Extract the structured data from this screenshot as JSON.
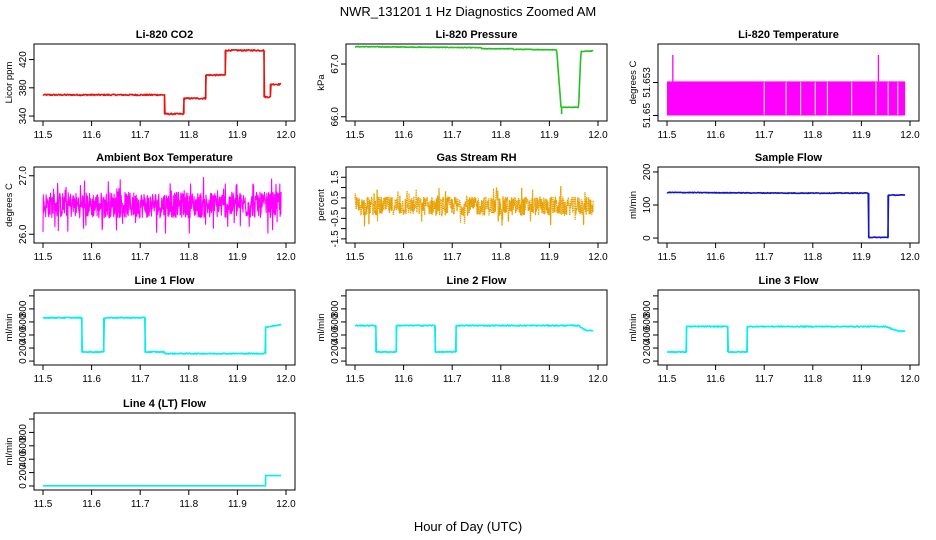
{
  "figure": {
    "title": "NWR_131201  1 Hz Diagnostics Zoomed AM",
    "xlabel": "Hour of Day (UTC)"
  },
  "chart_data": [
    {
      "type": "line",
      "title": "Li-820 CO2",
      "ylabel": "Licor ppm",
      "color": "#e8120f",
      "xlim": [
        11.5,
        12.0
      ],
      "ylim": [
        333,
        442
      ],
      "xticks": [
        11.5,
        11.6,
        11.7,
        11.8,
        11.9,
        12.0
      ],
      "yticks": [
        340,
        380,
        420
      ],
      "tick_labels_y": [
        "340",
        "380",
        "420"
      ],
      "noise": 1.0,
      "series": [
        {
          "x": [
            11.5,
            11.75,
            11.75,
            11.79,
            11.79,
            11.835,
            11.835,
            11.875,
            11.875,
            11.955,
            11.955,
            11.968,
            11.968,
            11.99
          ],
          "y": [
            370,
            370,
            343,
            343,
            365,
            365,
            398,
            398,
            433,
            433,
            367,
            367,
            385,
            385
          ]
        }
      ]
    },
    {
      "type": "line",
      "title": "Li-820 Pressure",
      "ylabel": "kPa",
      "color": "#22c31f",
      "xlim": [
        11.5,
        12.0
      ],
      "ylim": [
        65.92,
        67.38
      ],
      "xticks": [
        11.5,
        11.6,
        11.7,
        11.8,
        11.9,
        12.0
      ],
      "yticks": [
        66.0,
        67.0
      ],
      "tick_labels_y": [
        "66.0",
        "67.0"
      ],
      "noise": 0.006,
      "series": [
        {
          "x": [
            11.5,
            11.76,
            11.76,
            11.825,
            11.825,
            11.915,
            11.925,
            11.925,
            11.96,
            11.965,
            11.99
          ],
          "y": [
            67.33,
            67.31,
            67.29,
            67.29,
            67.28,
            67.27,
            66.05,
            66.18,
            66.18,
            67.24,
            67.25
          ]
        }
      ]
    },
    {
      "type": "line",
      "title": "Li-820 Temperature",
      "ylabel": "degrees C",
      "color": "#ff00ff",
      "xlim": [
        11.5,
        12.0
      ],
      "ylim": [
        51.6495,
        51.6565
      ],
      "xticks": [
        11.5,
        11.6,
        11.7,
        11.8,
        11.9,
        12.0
      ],
      "yticks": [
        51.65,
        51.653
      ],
      "tick_labels_y": [
        "51.65",
        "51.653"
      ],
      "band": [
        51.65,
        51.6531
      ],
      "spikes": [
        11.512,
        11.935
      ],
      "spike_top": 51.6555,
      "gaps": [
        11.7,
        11.745,
        11.775,
        11.805,
        11.83,
        11.88,
        11.93,
        11.955,
        11.975
      ],
      "series": []
    },
    {
      "type": "line",
      "title": "Ambient Box Temperature",
      "ylabel": "degrees C",
      "color": "#ff00ff",
      "xlim": [
        11.5,
        12.0
      ],
      "ylim": [
        25.85,
        27.15
      ],
      "xticks": [
        11.5,
        11.6,
        11.7,
        11.8,
        11.9,
        12.0
      ],
      "yticks": [
        26.0,
        27.0
      ],
      "tick_labels_y": [
        "26.0",
        "27.0"
      ],
      "noise": 0.22,
      "spiky": true,
      "series": [
        {
          "x": [
            11.5,
            11.99
          ],
          "y": [
            26.5,
            26.5
          ]
        }
      ]
    },
    {
      "type": "line",
      "title": "Gas Stream RH",
      "ylabel": "percent",
      "color": "#e8a000",
      "xlim": [
        11.5,
        12.0
      ],
      "ylim": [
        -1.7,
        2.0
      ],
      "xticks": [
        11.5,
        11.6,
        11.7,
        11.8,
        11.9,
        12.0
      ],
      "yticks": [
        -1.5,
        -0.5,
        0.5,
        1.5
      ],
      "tick_labels_y": [
        "-1.5",
        "-0.5",
        "0.5",
        "1.5"
      ],
      "minor_yticks": [
        -1.0,
        0.0,
        1.0
      ],
      "noise": 0.45,
      "spiky": true,
      "dotted": true,
      "series": [
        {
          "x": [
            11.5,
            11.99
          ],
          "y": [
            0.1,
            0.1
          ]
        }
      ]
    },
    {
      "type": "line",
      "title": "Sample Flow",
      "ylabel": "ml/min",
      "color": "#1414c8",
      "xlim": [
        11.5,
        12.0
      ],
      "ylim": [
        -15,
        215
      ],
      "xticks": [
        11.5,
        11.6,
        11.7,
        11.8,
        11.9,
        12.0
      ],
      "yticks": [
        0,
        100,
        200
      ],
      "tick_labels_y": [
        "0",
        "100",
        "200"
      ],
      "noise": 1.0,
      "series": [
        {
          "x": [
            11.5,
            11.75,
            11.91,
            11.915,
            11.915,
            11.955,
            11.955,
            11.99
          ],
          "y": [
            138,
            136,
            136,
            136,
            2,
            2,
            130,
            130
          ]
        }
      ]
    },
    {
      "type": "line",
      "title": "Line 1 Flow",
      "ylabel": "ml/min",
      "color": "#00f0f0",
      "xlim": [
        11.5,
        12.0
      ],
      "ylim": [
        -60,
        1090
      ],
      "xticks": [
        11.5,
        11.6,
        11.7,
        11.8,
        11.9,
        12.0
      ],
      "yticks": [
        0,
        200,
        400,
        600,
        800
      ],
      "tick_labels_y": [
        "0",
        "200",
        "400",
        "600",
        "800"
      ],
      "minor_yticks": [
        1000
      ],
      "noise": 8,
      "series": [
        {
          "x": [
            11.5,
            11.58,
            11.58,
            11.625,
            11.625,
            11.71,
            11.71,
            11.75,
            11.75,
            11.958,
            11.958,
            11.99
          ],
          "y": [
            665,
            665,
            140,
            140,
            665,
            665,
            140,
            140,
            115,
            115,
            520,
            560
          ]
        }
      ]
    },
    {
      "type": "line",
      "title": "Line 2 Flow",
      "ylabel": "ml/min",
      "color": "#00f0f0",
      "xlim": [
        11.5,
        12.0
      ],
      "ylim": [
        -60,
        1090
      ],
      "xticks": [
        11.5,
        11.6,
        11.7,
        11.8,
        11.9,
        12.0
      ],
      "yticks": [
        0,
        200,
        400,
        600,
        800
      ],
      "tick_labels_y": [
        "0",
        "200",
        "400",
        "600",
        "800"
      ],
      "minor_yticks": [
        1000
      ],
      "noise": 8,
      "series": [
        {
          "x": [
            11.5,
            11.543,
            11.543,
            11.585,
            11.585,
            11.665,
            11.665,
            11.708,
            11.708,
            11.96,
            11.975,
            11.99
          ],
          "y": [
            545,
            545,
            140,
            140,
            545,
            545,
            140,
            140,
            545,
            545,
            470,
            470
          ]
        }
      ]
    },
    {
      "type": "line",
      "title": "Line 3 Flow",
      "ylabel": "ml/min",
      "color": "#00f0f0",
      "xlim": [
        11.5,
        12.0
      ],
      "ylim": [
        -60,
        1090
      ],
      "xticks": [
        11.5,
        11.6,
        11.7,
        11.8,
        11.9,
        12.0
      ],
      "yticks": [
        0,
        200,
        400,
        600,
        800
      ],
      "tick_labels_y": [
        "0",
        "200",
        "400",
        "600",
        "800"
      ],
      "minor_yticks": [
        1000
      ],
      "noise": 8,
      "series": [
        {
          "x": [
            11.5,
            11.54,
            11.54,
            11.625,
            11.625,
            11.665,
            11.665,
            11.95,
            11.975,
            11.99
          ],
          "y": [
            140,
            140,
            530,
            530,
            140,
            140,
            530,
            530,
            460,
            460
          ]
        }
      ]
    },
    {
      "type": "line",
      "title": "Line 4 (LT) Flow",
      "ylabel": "ml/min",
      "color": "#00f0f0",
      "xlim": [
        11.5,
        12.0
      ],
      "ylim": [
        -60,
        1090
      ],
      "xticks": [
        11.5,
        11.6,
        11.7,
        11.8,
        11.9,
        12.0
      ],
      "yticks": [
        0,
        200,
        400,
        600,
        800
      ],
      "tick_labels_y": [
        "0",
        "200",
        "400",
        "600",
        "800"
      ],
      "minor_yticks": [
        1000
      ],
      "noise": 0,
      "series": [
        {
          "x": [
            11.5,
            11.958,
            11.958,
            11.99
          ],
          "y": [
            3,
            3,
            155,
            155
          ]
        }
      ]
    }
  ]
}
